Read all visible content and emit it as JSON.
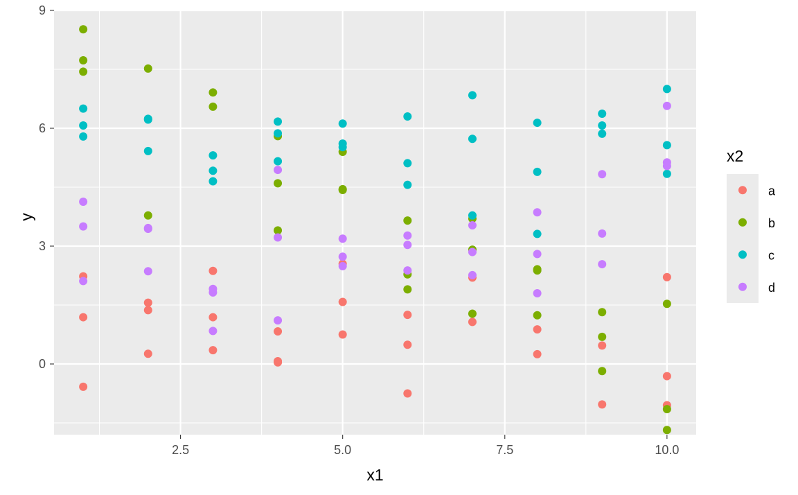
{
  "chart_data": {
    "type": "scatter",
    "title": "",
    "xlabel": "x1",
    "ylabel": "y",
    "xlim": [
      0.55,
      10.45
    ],
    "ylim": [
      -1.8,
      9.0
    ],
    "x_ticks": [
      2.5,
      5.0,
      7.5,
      10.0
    ],
    "x_tick_labels": [
      "2.5",
      "5.0",
      "7.5",
      "10.0"
    ],
    "y_ticks": [
      0,
      3,
      6,
      9
    ],
    "y_tick_labels": [
      "0",
      "3",
      "6",
      "9"
    ],
    "grid": true,
    "legend": {
      "title": "x2",
      "position": "right"
    },
    "series": [
      {
        "name": "a",
        "color": "#F8766D",
        "points": [
          [
            1,
            2.23
          ],
          [
            1,
            1.19
          ],
          [
            1,
            -0.58
          ],
          [
            2,
            1.56
          ],
          [
            2,
            1.37
          ],
          [
            2,
            0.26
          ],
          [
            3,
            2.37
          ],
          [
            3,
            1.19
          ],
          [
            3,
            0.35
          ],
          [
            4,
            0.83
          ],
          [
            4,
            0.07
          ],
          [
            4,
            0.04
          ],
          [
            5,
            2.55
          ],
          [
            5,
            1.58
          ],
          [
            5,
            0.75
          ],
          [
            6,
            1.25
          ],
          [
            6,
            0.49
          ],
          [
            6,
            -0.75
          ],
          [
            7,
            2.2
          ],
          [
            7,
            1.07
          ],
          [
            8,
            0.88
          ],
          [
            8,
            0.25
          ],
          [
            9,
            0.47
          ],
          [
            9,
            -1.03
          ],
          [
            10,
            2.21
          ],
          [
            10,
            -0.31
          ],
          [
            10,
            -1.05
          ]
        ]
      },
      {
        "name": "b",
        "color": "#7CAE00",
        "points": [
          [
            1,
            8.52
          ],
          [
            1,
            7.73
          ],
          [
            1,
            7.44
          ],
          [
            2,
            7.52
          ],
          [
            2,
            3.78
          ],
          [
            3,
            6.91
          ],
          [
            3,
            6.55
          ],
          [
            4,
            5.8
          ],
          [
            4,
            4.6
          ],
          [
            4,
            3.4
          ],
          [
            5,
            5.4
          ],
          [
            5,
            4.45
          ],
          [
            5,
            4.43
          ],
          [
            6,
            3.65
          ],
          [
            6,
            2.28
          ],
          [
            6,
            1.9
          ],
          [
            7,
            3.7
          ],
          [
            7,
            2.91
          ],
          [
            7,
            1.28
          ],
          [
            8,
            2.41
          ],
          [
            8,
            2.38
          ],
          [
            8,
            1.24
          ],
          [
            9,
            1.32
          ],
          [
            9,
            0.69
          ],
          [
            9,
            -0.18
          ],
          [
            10,
            1.53
          ],
          [
            10,
            -1.15
          ],
          [
            10,
            -1.68
          ]
        ]
      },
      {
        "name": "c",
        "color": "#00BFC4",
        "points": [
          [
            1,
            6.5
          ],
          [
            1,
            6.07
          ],
          [
            1,
            5.79
          ],
          [
            2,
            6.24
          ],
          [
            2,
            6.22
          ],
          [
            2,
            5.42
          ],
          [
            3,
            5.31
          ],
          [
            3,
            4.92
          ],
          [
            3,
            4.65
          ],
          [
            4,
            6.17
          ],
          [
            4,
            5.87
          ],
          [
            4,
            5.16
          ],
          [
            5,
            6.12
          ],
          [
            5,
            5.61
          ],
          [
            5,
            5.52
          ],
          [
            6,
            6.3
          ],
          [
            6,
            5.11
          ],
          [
            6,
            4.56
          ],
          [
            7,
            6.84
          ],
          [
            7,
            5.73
          ],
          [
            7,
            3.78
          ],
          [
            8,
            6.14
          ],
          [
            8,
            4.89
          ],
          [
            8,
            3.31
          ],
          [
            9,
            6.37
          ],
          [
            9,
            6.07
          ],
          [
            9,
            5.86
          ],
          [
            10,
            7.0
          ],
          [
            10,
            5.57
          ],
          [
            10,
            4.84
          ]
        ]
      },
      {
        "name": "d",
        "color": "#C77CFF",
        "points": [
          [
            1,
            4.13
          ],
          [
            1,
            3.5
          ],
          [
            1,
            2.11
          ],
          [
            2,
            3.46
          ],
          [
            2,
            3.44
          ],
          [
            2,
            2.36
          ],
          [
            3,
            1.91
          ],
          [
            3,
            1.82
          ],
          [
            3,
            0.84
          ],
          [
            4,
            4.94
          ],
          [
            4,
            3.22
          ],
          [
            4,
            1.11
          ],
          [
            5,
            3.19
          ],
          [
            5,
            2.73
          ],
          [
            5,
            2.49
          ],
          [
            6,
            3.27
          ],
          [
            6,
            3.03
          ],
          [
            6,
            2.38
          ],
          [
            7,
            3.53
          ],
          [
            7,
            2.85
          ],
          [
            7,
            2.26
          ],
          [
            8,
            3.86
          ],
          [
            8,
            2.8
          ],
          [
            8,
            1.8
          ],
          [
            9,
            4.83
          ],
          [
            9,
            3.32
          ],
          [
            9,
            2.54
          ],
          [
            10,
            6.57
          ],
          [
            10,
            5.13
          ],
          [
            10,
            5.04
          ]
        ]
      }
    ]
  }
}
